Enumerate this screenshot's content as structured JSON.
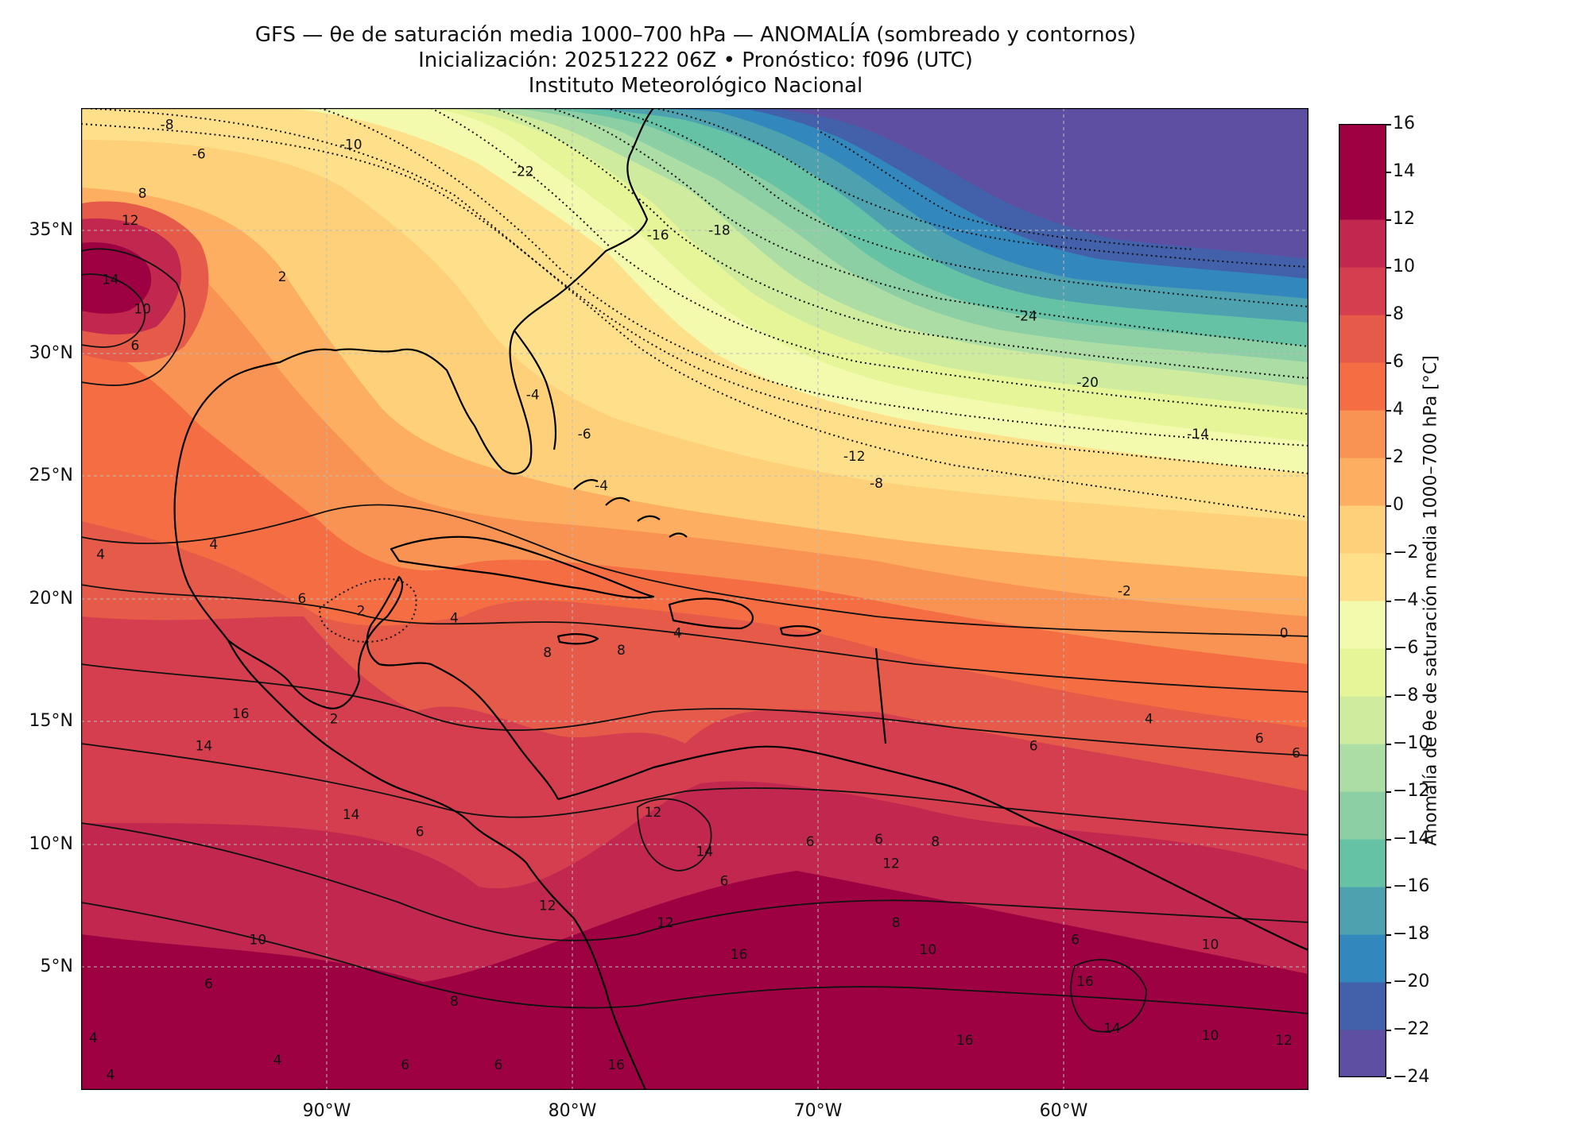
{
  "title": {
    "line1": "GFS — θe de saturación media 1000–700 hPa — ANOMALÍA (sombreado y contornos)",
    "line2": "Inicialización: 20251222 06Z   •   Pronóstico: f096 (UTC)",
    "line3": "Instituto Meteorológico Nacional"
  },
  "map": {
    "lat_labels": [
      "35°N",
      "30°N",
      "25°N",
      "20°N",
      "15°N",
      "10°N",
      "5°N"
    ],
    "lon_labels": [
      "90°W",
      "80°W",
      "70°W",
      "60°W"
    ],
    "lat_values": [
      35,
      30,
      25,
      20,
      15,
      10,
      5
    ],
    "lon_values": [
      -90,
      -80,
      -70,
      -60
    ],
    "extent": {
      "lon_min": -100,
      "lon_max": -50,
      "lat_min": 0,
      "lat_max": 40
    },
    "grid": true,
    "contour_labels": [
      {
        "text": "-8",
        "lon": -96.5,
        "lat": 39.3
      },
      {
        "text": "-6",
        "lon": -95.2,
        "lat": 38.1
      },
      {
        "text": "-10",
        "lon": -89,
        "lat": 38.5
      },
      {
        "text": "-22",
        "lon": -82,
        "lat": 37.4
      },
      {
        "text": "8",
        "lon": -97.5,
        "lat": 36.5
      },
      {
        "text": "12",
        "lon": -98,
        "lat": 35.4
      },
      {
        "text": "-16",
        "lon": -76.5,
        "lat": 34.8
      },
      {
        "text": "-18",
        "lon": -74,
        "lat": 35.0
      },
      {
        "text": "2",
        "lon": -91.8,
        "lat": 33.1
      },
      {
        "text": "14",
        "lon": -98.8,
        "lat": 33.0
      },
      {
        "text": "10",
        "lon": -97.5,
        "lat": 31.8
      },
      {
        "text": "6",
        "lon": -97.8,
        "lat": 30.3
      },
      {
        "text": "-24",
        "lon": -61.5,
        "lat": 31.5
      },
      {
        "text": "-20",
        "lon": -59,
        "lat": 28.8
      },
      {
        "text": "-4",
        "lon": -81.6,
        "lat": 28.3
      },
      {
        "text": "-6",
        "lon": -79.5,
        "lat": 26.7
      },
      {
        "text": "-12",
        "lon": -68.5,
        "lat": 25.8
      },
      {
        "text": "-14",
        "lon": -54.5,
        "lat": 26.7
      },
      {
        "text": "-4",
        "lon": -78.8,
        "lat": 24.6
      },
      {
        "text": "-8",
        "lon": -67.6,
        "lat": 24.7
      },
      {
        "text": "4",
        "lon": -94.6,
        "lat": 22.2
      },
      {
        "text": "4",
        "lon": -99.2,
        "lat": 21.8
      },
      {
        "text": "6",
        "lon": -91,
        "lat": 20.0
      },
      {
        "text": "2",
        "lon": -88.6,
        "lat": 19.5
      },
      {
        "text": "-2",
        "lon": -57.5,
        "lat": 20.3
      },
      {
        "text": "4",
        "lon": -84.8,
        "lat": 19.2
      },
      {
        "text": "8",
        "lon": -81,
        "lat": 17.8
      },
      {
        "text": "8",
        "lon": -78,
        "lat": 17.9
      },
      {
        "text": "4",
        "lon": -75.7,
        "lat": 18.6
      },
      {
        "text": "0",
        "lon": -51,
        "lat": 18.6
      },
      {
        "text": "16",
        "lon": -93.5,
        "lat": 15.3
      },
      {
        "text": "2",
        "lon": -89.7,
        "lat": 15.1
      },
      {
        "text": "4",
        "lon": -56.5,
        "lat": 15.1
      },
      {
        "text": "6",
        "lon": -52,
        "lat": 14.3
      },
      {
        "text": "6",
        "lon": -61.2,
        "lat": 14.0
      },
      {
        "text": "14",
        "lon": -95,
        "lat": 14.0
      },
      {
        "text": "6",
        "lon": -50.5,
        "lat": 13.7
      },
      {
        "text": "14",
        "lon": -89,
        "lat": 11.2
      },
      {
        "text": "12",
        "lon": -76.7,
        "lat": 11.3
      },
      {
        "text": "6",
        "lon": -86.2,
        "lat": 10.5
      },
      {
        "text": "14",
        "lon": -74.6,
        "lat": 9.7
      },
      {
        "text": "6",
        "lon": -70.3,
        "lat": 10.1
      },
      {
        "text": "6",
        "lon": -67.5,
        "lat": 10.2
      },
      {
        "text": "8",
        "lon": -65.2,
        "lat": 10.1
      },
      {
        "text": "6",
        "lon": -73.8,
        "lat": 8.5
      },
      {
        "text": "12",
        "lon": -67,
        "lat": 9.2
      },
      {
        "text": "12",
        "lon": -81,
        "lat": 7.5
      },
      {
        "text": "12",
        "lon": -76.2,
        "lat": 6.8
      },
      {
        "text": "10",
        "lon": -92.8,
        "lat": 6.1
      },
      {
        "text": "8",
        "lon": -66.8,
        "lat": 6.8
      },
      {
        "text": "6",
        "lon": -59.5,
        "lat": 6.1
      },
      {
        "text": "10",
        "lon": -54,
        "lat": 5.9
      },
      {
        "text": "16",
        "lon": -73.2,
        "lat": 5.5
      },
      {
        "text": "10",
        "lon": -65.5,
        "lat": 5.7
      },
      {
        "text": "6",
        "lon": -94.8,
        "lat": 4.3
      },
      {
        "text": "16",
        "lon": -59.1,
        "lat": 4.4
      },
      {
        "text": "8",
        "lon": -84.8,
        "lat": 3.6
      },
      {
        "text": "14",
        "lon": -58,
        "lat": 2.5
      },
      {
        "text": "10",
        "lon": -54,
        "lat": 2.2
      },
      {
        "text": "4",
        "lon": -99.5,
        "lat": 2.1
      },
      {
        "text": "16",
        "lon": -64,
        "lat": 2.0
      },
      {
        "text": "4",
        "lon": -92,
        "lat": 1.2
      },
      {
        "text": "12",
        "lon": -51,
        "lat": 2.0
      },
      {
        "text": "6",
        "lon": -86.8,
        "lat": 1.0
      },
      {
        "text": "6",
        "lon": -83,
        "lat": 1.0
      },
      {
        "text": "16",
        "lon": -78.2,
        "lat": 1.0
      },
      {
        "text": "4",
        "lon": -98.8,
        "lat": 0.6
      }
    ]
  },
  "colorbar": {
    "label": "Anomalía de θe de saturación media 1000–700 hPa [°C]",
    "min": -24,
    "max": 16,
    "ticks": [
      "16",
      "14",
      "12",
      "10",
      "8",
      "6",
      "4",
      "2",
      "0",
      "−2",
      "−4",
      "−6",
      "−8",
      "−10",
      "−12",
      "−14",
      "−16",
      "−18",
      "−20",
      "−22",
      "−24"
    ],
    "tick_values": [
      16,
      14,
      12,
      10,
      8,
      6,
      4,
      2,
      0,
      -2,
      -4,
      -6,
      -8,
      -10,
      -12,
      -14,
      -16,
      -18,
      -20,
      -22,
      -24
    ],
    "colors": [
      "#5e4fa2",
      "#4361aa",
      "#3288bd",
      "#4ea2b0",
      "#66c2a5",
      "#8ccfa4",
      "#abdda4",
      "#cfec9e",
      "#e6f598",
      "#f3faae",
      "#fee08b",
      "#fed07a",
      "#fdae61",
      "#f99354",
      "#f46d43",
      "#e55a49",
      "#d53e4f",
      "#c1274f",
      "#9e0142",
      "#9e0142"
    ]
  }
}
